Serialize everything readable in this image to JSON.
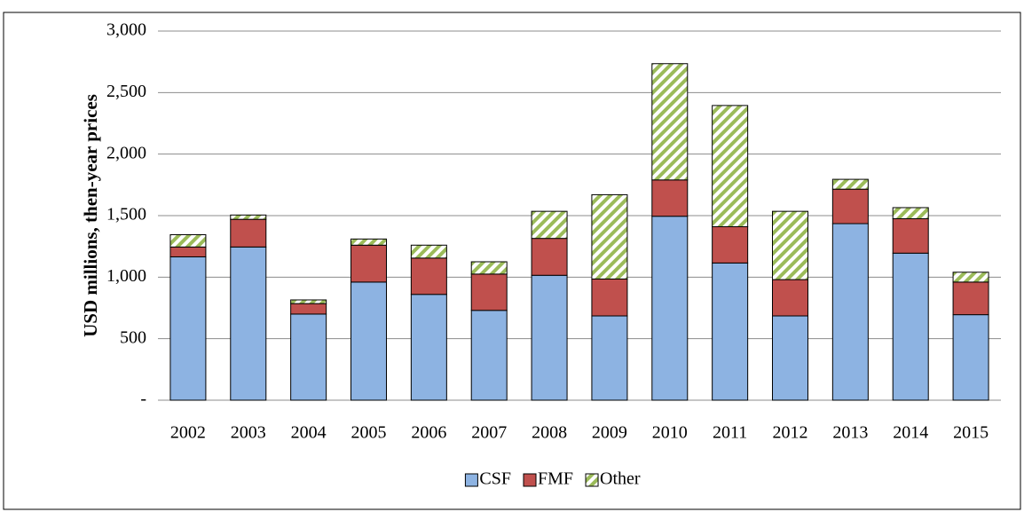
{
  "chart_data": {
    "type": "stacked_bar",
    "y_label": "USD millions, then-year prices",
    "categories": [
      "2002",
      "2003",
      "2004",
      "2005",
      "2006",
      "2007",
      "2008",
      "2009",
      "2010",
      "2011",
      "2012",
      "2013",
      "2014",
      "2015"
    ],
    "series": [
      {
        "name": "CSF",
        "color": "#8db3e2",
        "values": [
          1165,
          1245,
          700,
          960,
          860,
          730,
          1015,
          685,
          1495,
          1115,
          685,
          1435,
          1195,
          695
        ]
      },
      {
        "name": "FMF",
        "color": "#c0504d",
        "values": [
          80,
          225,
          85,
          300,
          295,
          295,
          300,
          300,
          295,
          295,
          295,
          280,
          280,
          265
        ]
      },
      {
        "name": "Other",
        "color": "#9bbb59",
        "hatch": true,
        "values": [
          100,
          35,
          30,
          50,
          105,
          100,
          220,
          685,
          945,
          985,
          555,
          80,
          90,
          80
        ]
      }
    ],
    "ylim": [
      0,
      3000
    ],
    "yticks": [
      {
        "value": 0,
        "label": "-"
      },
      500,
      {
        "value": 1000,
        "label": "1,000"
      },
      {
        "value": 1500,
        "label": "1,500"
      },
      {
        "value": 2000,
        "label": "2,000"
      },
      {
        "value": 2500,
        "label": "2,500"
      },
      {
        "value": 3000,
        "label": "3,000"
      }
    ],
    "grid": true,
    "legend": "bottom"
  }
}
